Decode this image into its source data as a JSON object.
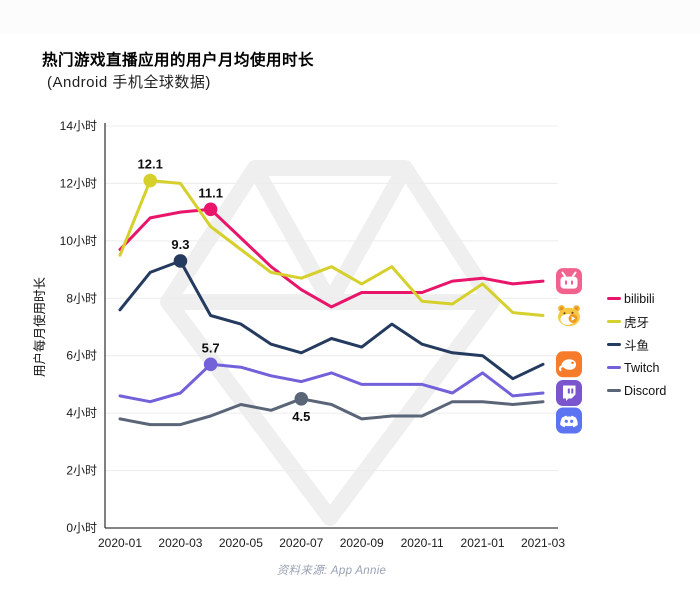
{
  "header": {
    "title": "热门游戏直播应用的用户月均使用时长",
    "subtitle": "(Android 手机全球数据)"
  },
  "footer": {
    "source": "资料来源: App Annie"
  },
  "chart_data": {
    "type": "line",
    "title": "热门游戏直播应用的用户月均使用时长",
    "subtitle": "(Android 手机全球数据)",
    "source": "资料来源: App Annie",
    "xlabel": "",
    "ylabel": "用户每月使用时长",
    "ylim": [
      0,
      14
    ],
    "ytick_step": 2,
    "ytick_suffix": "小时",
    "grid": true,
    "legend_position": "right",
    "x": [
      "2020-01",
      "2020-02",
      "2020-03",
      "2020-04",
      "2020-05",
      "2020-06",
      "2020-07",
      "2020-08",
      "2020-09",
      "2020-10",
      "2020-11",
      "2020-12",
      "2021-01",
      "2021-02",
      "2021-03"
    ],
    "x_tick_labels": [
      "2020-01",
      "2020-03",
      "2020-05",
      "2020-07",
      "2020-09",
      "2020-11",
      "2021-01",
      "2021-03"
    ],
    "series": [
      {
        "name": "bilibili",
        "color": "#e8156b",
        "icon": "bilibili-app-icon",
        "values": [
          9.7,
          10.8,
          11.0,
          11.1,
          10.1,
          9.1,
          8.3,
          7.7,
          8.2,
          8.2,
          8.2,
          8.6,
          8.7,
          8.5,
          8.6
        ]
      },
      {
        "name": "虎牙",
        "color": "#d6d02d",
        "icon": "huya-app-icon",
        "values": [
          9.5,
          12.1,
          12.0,
          10.5,
          9.7,
          8.9,
          8.7,
          9.1,
          8.5,
          9.1,
          7.9,
          7.8,
          8.5,
          7.5,
          7.4
        ]
      },
      {
        "name": "斗鱼",
        "color": "#243a5e",
        "icon": "douyu-app-icon",
        "values": [
          7.6,
          8.9,
          9.3,
          7.4,
          7.1,
          6.4,
          6.1,
          6.6,
          6.3,
          7.1,
          6.4,
          6.1,
          6.0,
          5.2,
          5.7
        ]
      },
      {
        "name": "Twitch",
        "color": "#7261d9",
        "icon": "twitch-app-icon",
        "values": [
          4.6,
          4.4,
          4.7,
          5.7,
          5.6,
          5.3,
          5.1,
          5.4,
          5.0,
          5.0,
          5.0,
          4.7,
          5.4,
          4.6,
          4.7
        ]
      },
      {
        "name": "Discord",
        "color": "#5a6578",
        "icon": "discord-app-icon",
        "values": [
          3.8,
          3.6,
          3.6,
          3.9,
          4.3,
          4.1,
          4.5,
          4.3,
          3.8,
          3.9,
          3.9,
          4.4,
          4.4,
          4.3,
          4.4
        ]
      }
    ],
    "annotations": [
      {
        "series": "虎牙",
        "x": "2020-02",
        "value": 12.1,
        "label": "12.1",
        "placement": "above"
      },
      {
        "series": "bilibili",
        "x": "2020-04",
        "value": 11.1,
        "label": "11.1",
        "placement": "above"
      },
      {
        "series": "斗鱼",
        "x": "2020-03",
        "value": 9.3,
        "label": "9.3",
        "placement": "above"
      },
      {
        "series": "Twitch",
        "x": "2020-04",
        "value": 5.7,
        "label": "5.7",
        "placement": "above"
      },
      {
        "series": "Discord",
        "x": "2020-07",
        "value": 4.5,
        "label": "4.5",
        "placement": "below"
      }
    ]
  },
  "colors": {
    "axis": "#3c3c3c",
    "grid": "#ececec",
    "tick_text": "#1b1b1b",
    "annotation_text": "#0d0d0d",
    "watermark": "#efefef"
  }
}
